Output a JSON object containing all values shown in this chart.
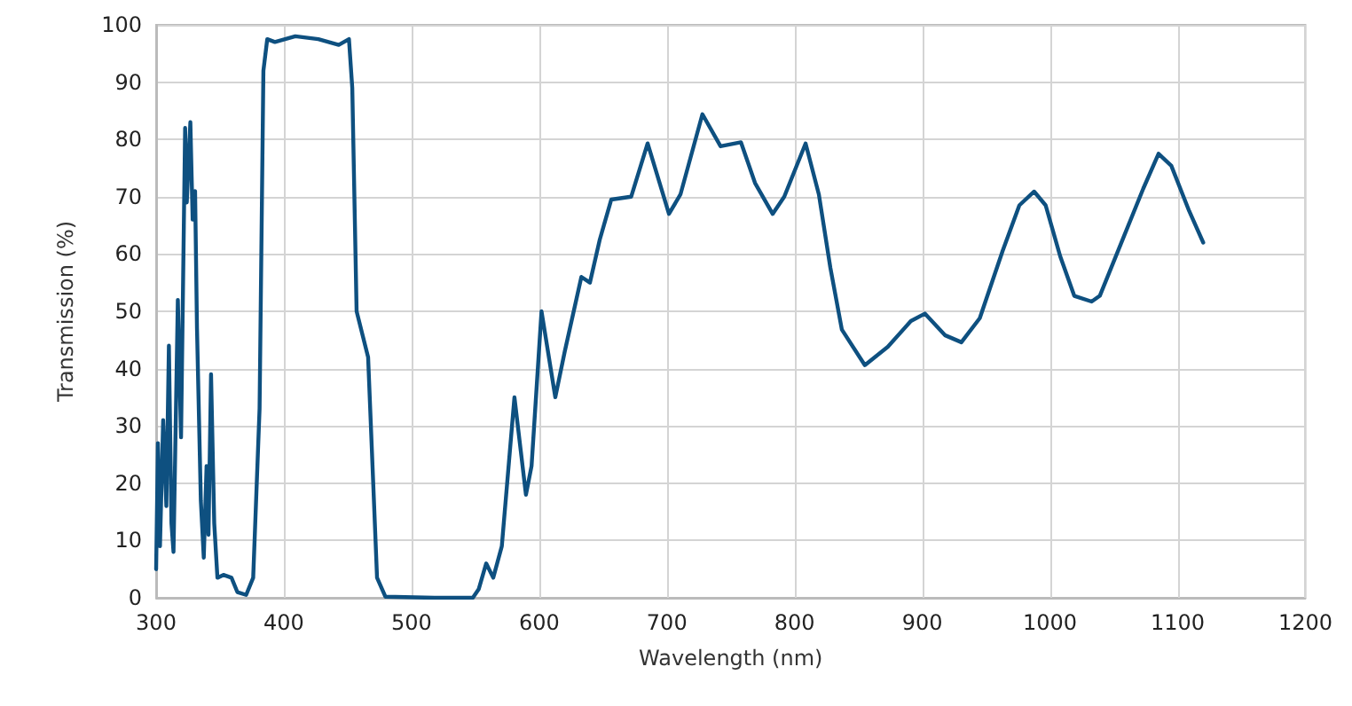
{
  "chart_data": {
    "type": "line",
    "xlabel": "Wavelength (nm)",
    "ylabel": "Transmission (%)",
    "xlim": [
      300,
      1200
    ],
    "xticks": [
      300,
      400,
      500,
      600,
      700,
      800,
      900,
      1000,
      1100,
      1200
    ],
    "ylim": [
      0,
      100
    ],
    "yticks": [
      0,
      10,
      20,
      30,
      40,
      50,
      60,
      70,
      80,
      90,
      100
    ],
    "grid": true,
    "marker": "none",
    "line_style": "solid",
    "series": [
      {
        "color": "#0e5080",
        "x": [
          300,
          301.4,
          303,
          305.5,
          308,
          310,
          312,
          313.6,
          317,
          319.5,
          322.7,
          324,
          326.8,
          328.6,
          330.5,
          332,
          335,
          337.3,
          339.5,
          341,
          343,
          345.5,
          348,
          352.7,
          359,
          363.6,
          370.5,
          376,
          381,
          384,
          387,
          393,
          409,
          427,
          443,
          451,
          453.6,
          457,
          466,
          473,
          479.5,
          518,
          548,
          552.6,
          558.5,
          564,
          570.7,
          580.6,
          589.6,
          594,
          601.8,
          612.6,
          620,
          633,
          639.7,
          647.4,
          656.4,
          672,
          684.9,
          701.6,
          710.6,
          727.8,
          742,
          758,
          769,
          782.8,
          791.9,
          808.6,
          819,
          828,
          837,
          855,
          873,
          891,
          902,
          918,
          930.6,
          945,
          963,
          976,
          987.6,
          996.6,
          1008,
          1019,
          1032.6,
          1039,
          1057,
          1073,
          1085,
          1095,
          1109,
          1120
        ],
        "values": [
          5,
          27,
          9,
          31,
          16,
          44,
          13,
          8,
          52,
          28,
          82,
          69,
          83,
          66,
          71,
          47,
          17,
          7,
          23,
          11,
          39,
          13,
          3.5,
          4,
          3.5,
          1,
          0.5,
          3.5,
          33,
          92,
          97.5,
          97,
          98,
          97.5,
          96.5,
          97.5,
          89,
          50,
          42,
          3.5,
          0.2,
          0,
          0,
          1.5,
          6,
          3.5,
          9,
          35,
          18,
          23,
          50,
          35,
          43,
          56,
          55,
          62.5,
          69.5,
          70,
          79.3,
          67,
          70.4,
          84.4,
          78.8,
          79.5,
          72.4,
          67,
          70,
          79.3,
          70.4,
          57.6,
          46.8,
          40.6,
          43.8,
          48.3,
          49.6,
          45.8,
          44.6,
          48.8,
          60.6,
          68.5,
          70.9,
          68.5,
          59.6,
          52.7,
          51.7,
          52.7,
          62.6,
          71.4,
          77.5,
          75.4,
          67.5,
          62
        ]
      }
    ]
  }
}
